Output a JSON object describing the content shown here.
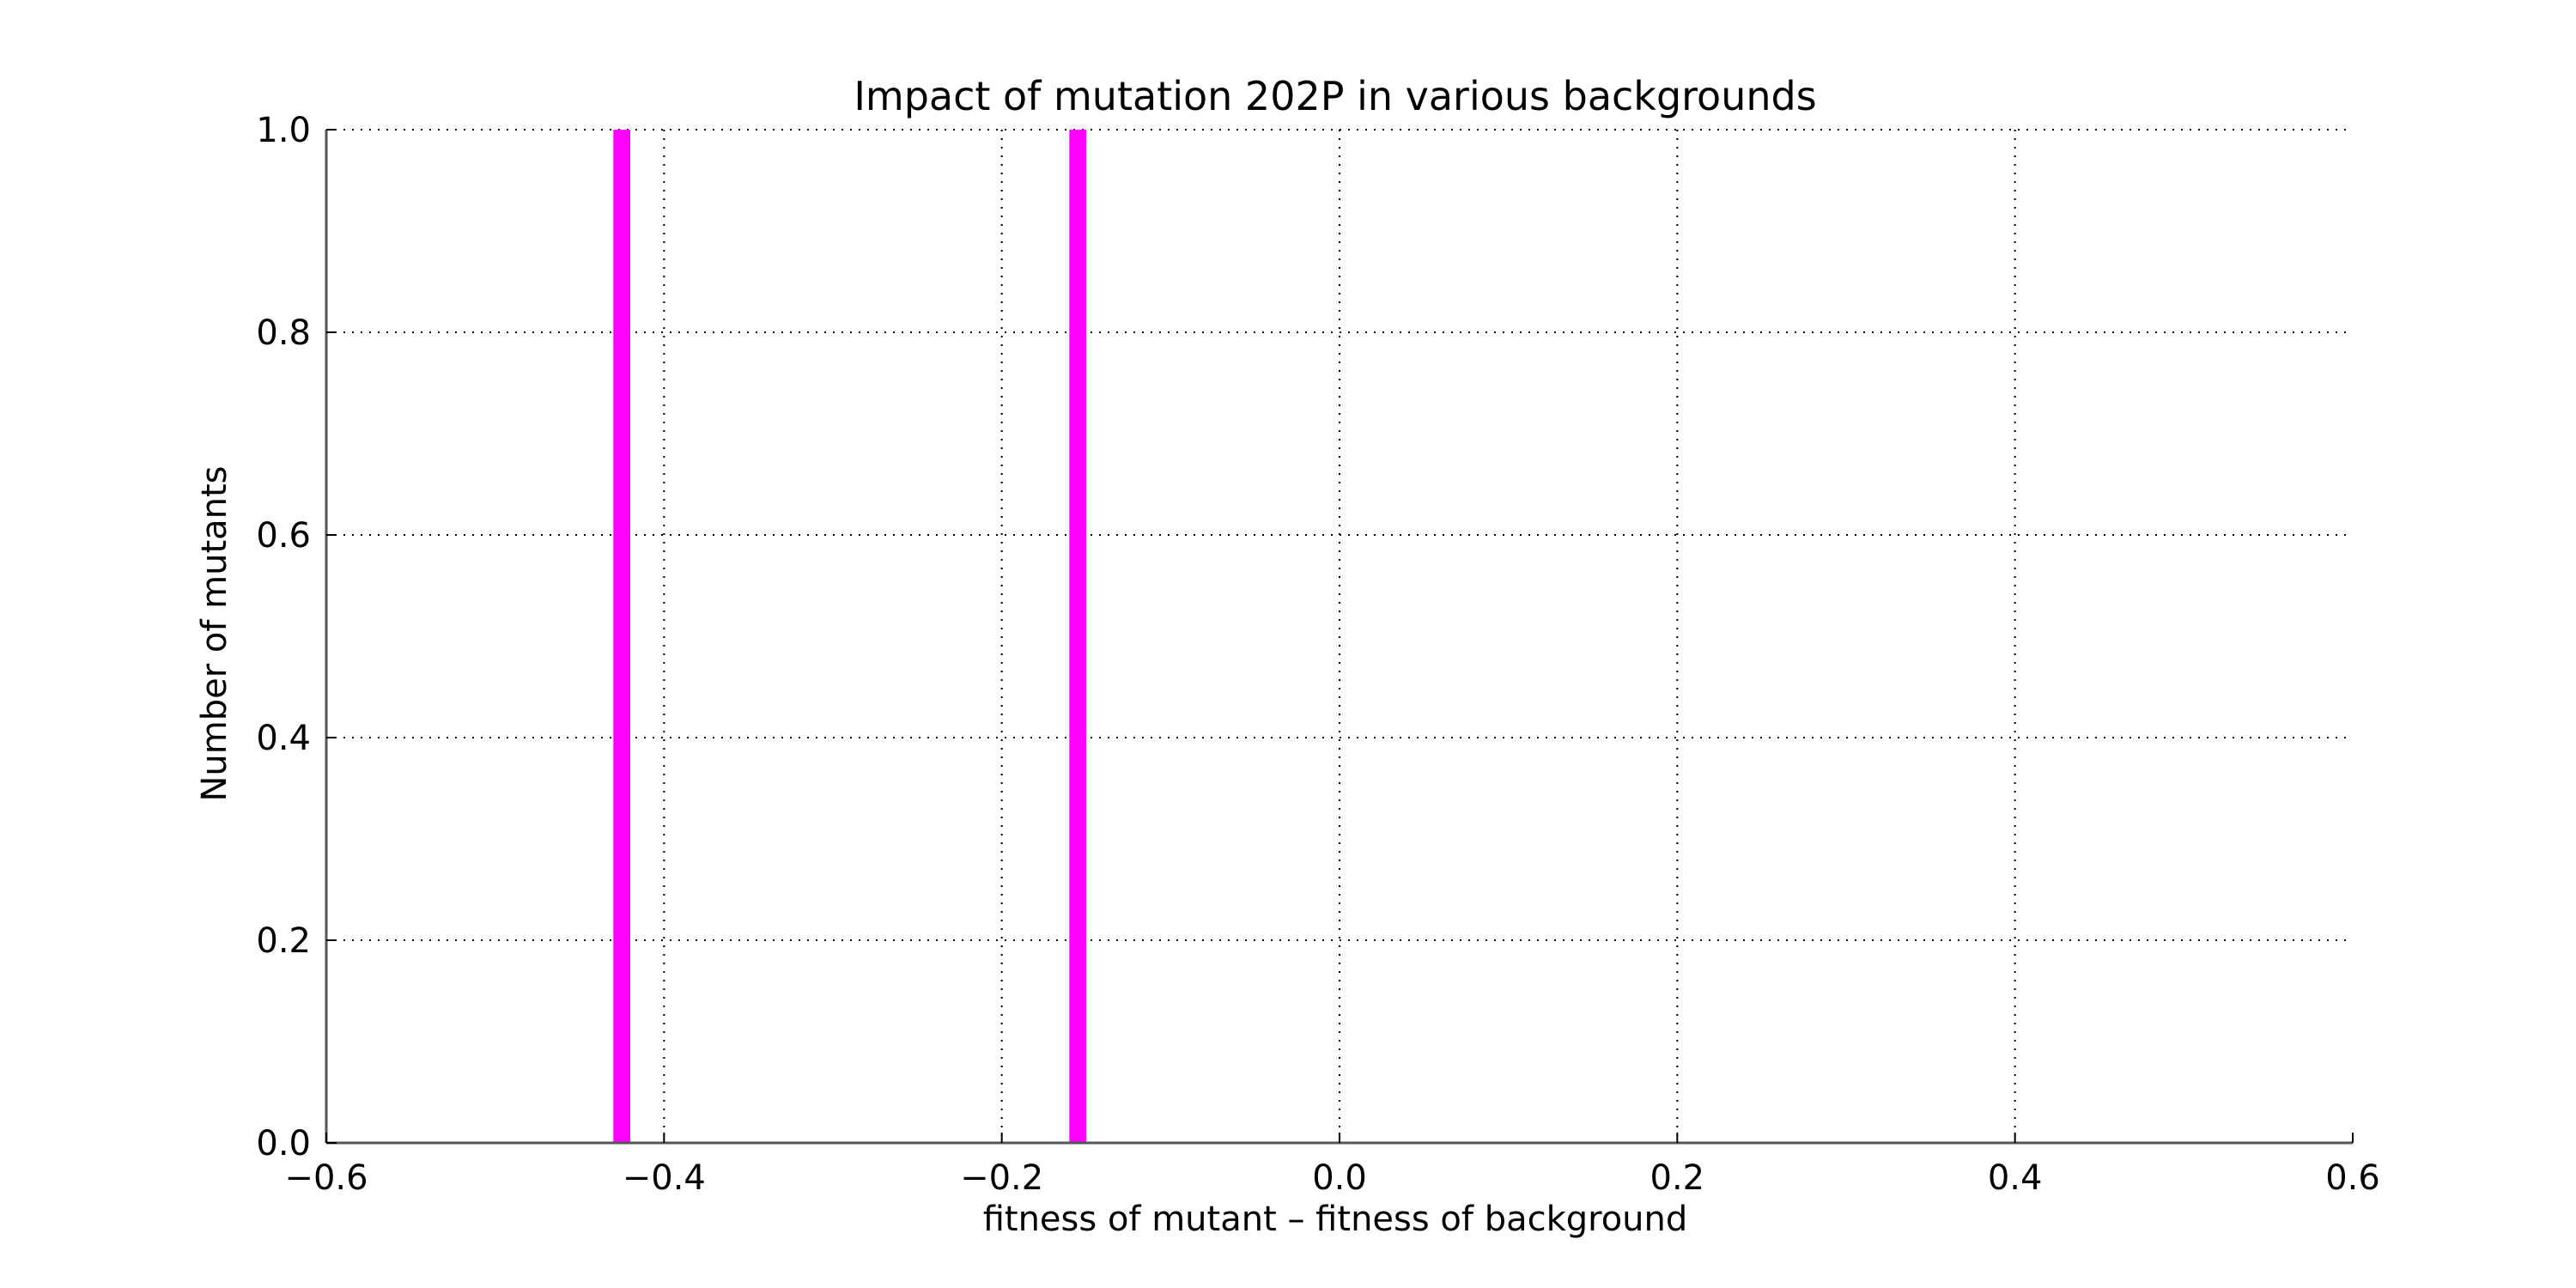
{
  "chart_data": {
    "type": "bar",
    "title": "Impact of mutation 202P in various backgrounds",
    "xlabel": "fitness of mutant  –  fitness of background",
    "ylabel": "Number of mutants",
    "xlim": [
      -0.6,
      0.6
    ],
    "ylim": [
      0.0,
      1.0
    ],
    "x_ticks": [
      -0.6,
      -0.4,
      -0.2,
      0.0,
      0.2,
      0.4,
      0.6
    ],
    "x_tick_labels": [
      "−0.6",
      "−0.4",
      "−0.2",
      "0.0",
      "0.2",
      "0.4",
      "0.6"
    ],
    "y_ticks": [
      0.0,
      0.2,
      0.4,
      0.6,
      0.8,
      1.0
    ],
    "y_tick_labels": [
      "0.0",
      "0.2",
      "0.4",
      "0.6",
      "0.8",
      "1.0"
    ],
    "grid": true,
    "bar_color": "#ff00ff",
    "bars": [
      {
        "x": -0.425,
        "width": 0.01,
        "value": 1.0
      },
      {
        "x": -0.155,
        "width": 0.01,
        "value": 1.0
      }
    ]
  }
}
